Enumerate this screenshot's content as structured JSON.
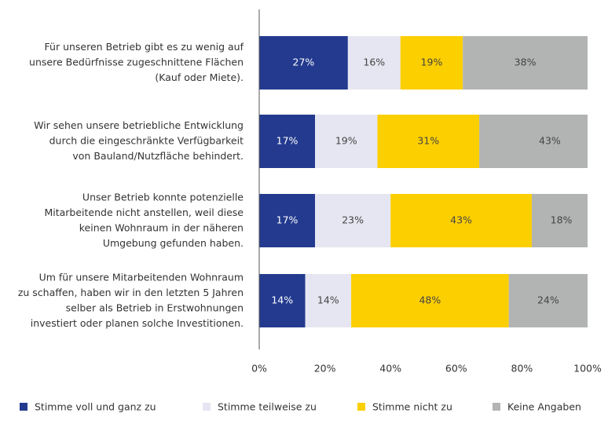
{
  "chart_data": {
    "type": "stacked-bar-horizontal",
    "categories": [
      [
        "Für unseren Betrieb gibt es zu wenig auf",
        "unsere Bedürfnisse zugeschnittene Flächen",
        "(Kauf oder Miete)."
      ],
      [
        "Wir sehen unsere betriebliche Entwicklung",
        "durch die eingeschränkte Verfügbarkeit",
        "von Bauland/Nutzfläche behindert."
      ],
      [
        "Unser Betrieb konnte potenzielle",
        "Mitarbeitende nicht anstellen, weil diese",
        "keinen Wohnraum in der näheren",
        "Umgebung gefunden haben."
      ],
      [
        "Um für unsere Mitarbeitenden Wohnraum",
        "zu schaffen, haben wir in den letzten 5 Jahren",
        "selber als Betrieb in Erstwohnungen",
        "investiert oder planen solche Investitionen."
      ]
    ],
    "series": [
      {
        "name": "Stimme voll und ganz zu",
        "color": "#233a8f",
        "label_color": "#ffffff",
        "values": [
          27,
          17,
          17,
          14
        ],
        "value_labels": [
          "27%",
          "17%",
          "17%",
          "14%"
        ]
      },
      {
        "name": "Stimme teilweise zu",
        "color": "#e6e6f2",
        "label_color": "#444444",
        "values": [
          16,
          19,
          23,
          14
        ],
        "value_labels": [
          "16%",
          "19%",
          "23%",
          "14%"
        ]
      },
      {
        "name": "Stimme nicht zu",
        "color": "#fccf00",
        "label_color": "#444444",
        "values": [
          19,
          31,
          43,
          48
        ],
        "value_labels": [
          "19%",
          "31%",
          "43%",
          "48%"
        ]
      },
      {
        "name": "Keine Angaben",
        "color": "#b2b3b3",
        "label_color": "#444444",
        "values": [
          38,
          43,
          18,
          24
        ],
        "value_labels": [
          "38%",
          "43%",
          "18%",
          "24%"
        ]
      }
    ],
    "xlim": [
      0,
      100
    ],
    "xticks": [
      {
        "value": 0,
        "label": "0%"
      },
      {
        "value": 20,
        "label": "20%"
      },
      {
        "value": 40,
        "label": "40%"
      },
      {
        "value": 60,
        "label": "60%"
      },
      {
        "value": 80,
        "label": "80%"
      },
      {
        "value": 100,
        "label": "100%"
      }
    ],
    "legend": "bottom"
  }
}
